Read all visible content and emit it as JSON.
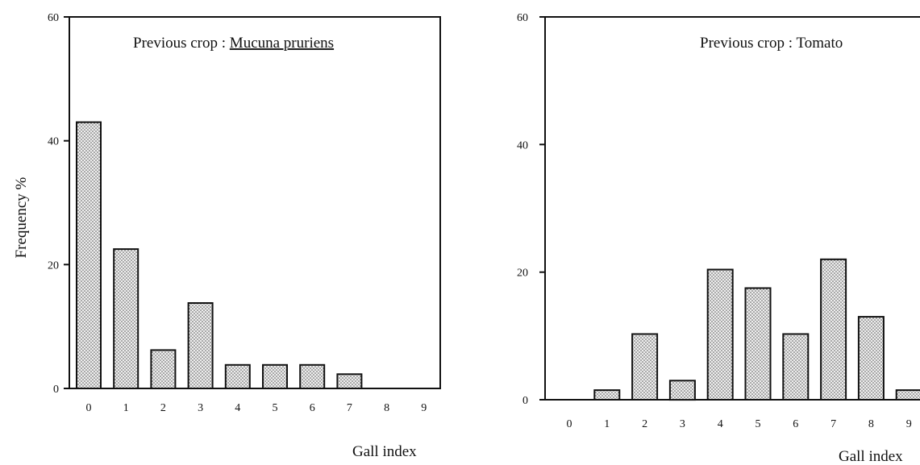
{
  "figure": {
    "y_axis_label": "Frequency %",
    "x_axis_label": "Gall index"
  },
  "chart_data": [
    {
      "type": "bar",
      "title_prefix": "Previous crop : ",
      "title_crop": "Mucuna pruriens",
      "title_crop_underlined": true,
      "xlabel": "Gall index",
      "ylabel": "Frequency %",
      "categories": [
        "0",
        "1",
        "2",
        "3",
        "4",
        "5",
        "6",
        "7",
        "8",
        "9"
      ],
      "values": [
        43,
        22.5,
        6.2,
        13.8,
        3.8,
        3.8,
        3.8,
        2.3,
        0,
        0
      ],
      "ylim": [
        0,
        60
      ],
      "yticks": [
        0,
        20,
        40,
        60
      ],
      "grid": false,
      "bar_fill": "#d6d6d6"
    },
    {
      "type": "bar",
      "title_prefix": "Previous crop : ",
      "title_crop": "Tomato",
      "title_crop_underlined": false,
      "xlabel": "Gall index",
      "ylabel": "",
      "categories": [
        "0",
        "1",
        "2",
        "3",
        "4",
        "5",
        "6",
        "7",
        "8",
        "9"
      ],
      "values": [
        0,
        1.5,
        10.3,
        3,
        20.4,
        17.5,
        10.3,
        22,
        13,
        1.5
      ],
      "ylim": [
        0,
        60
      ],
      "yticks": [
        0,
        20,
        40,
        60
      ],
      "grid": false,
      "bar_fill": "#d6d6d6"
    }
  ]
}
